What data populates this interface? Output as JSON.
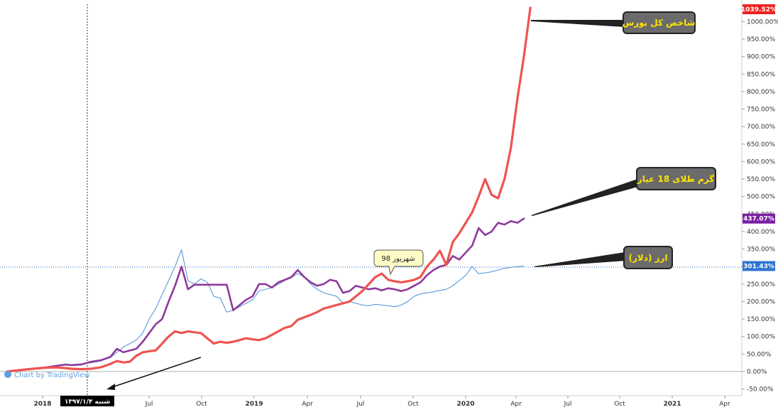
{
  "chart_data": {
    "type": "line",
    "x_ticks": [
      "2018",
      "Jul",
      "Oct",
      "2019",
      "Apr",
      "Jul",
      "Oct",
      "2020",
      "Apr",
      "Jul",
      "Oct",
      "2021",
      "Apr"
    ],
    "y_ticks": [
      "1000.00%",
      "950.00%",
      "900.00%",
      "850.00%",
      "800.00%",
      "750.00%",
      "700.00%",
      "650.00%",
      "600.00%",
      "550.00%",
      "500.00%",
      "450.00%",
      "400.00%",
      "350.00%",
      "300.00%",
      "250.00%",
      "200.00%",
      "150.00%",
      "100.00%",
      "50.00%",
      "0.00%",
      "-50.00%"
    ],
    "ylim": [
      -50,
      1039.52
    ],
    "series": [
      {
        "name": "شاخص کل بورس",
        "color": "#ef5350",
        "last_label": "1039.52%",
        "points": [
          [
            0,
            0
          ],
          [
            0.3,
            3
          ],
          [
            0.6,
            6
          ],
          [
            0.9,
            9
          ],
          [
            1.2,
            11
          ],
          [
            1.5,
            12
          ],
          [
            1.8,
            10
          ],
          [
            2.0,
            8
          ],
          [
            2.3,
            7
          ],
          [
            2.6,
            8
          ],
          [
            2.9,
            12
          ],
          [
            3.2,
            22
          ],
          [
            3.4,
            30
          ],
          [
            3.6,
            26
          ],
          [
            3.8,
            28
          ],
          [
            4.0,
            45
          ],
          [
            4.2,
            55
          ],
          [
            4.4,
            58
          ],
          [
            4.6,
            60
          ],
          [
            4.8,
            80
          ],
          [
            5.0,
            100
          ],
          [
            5.2,
            115
          ],
          [
            5.4,
            110
          ],
          [
            5.6,
            115
          ],
          [
            5.8,
            112
          ],
          [
            6.0,
            110
          ],
          [
            6.2,
            95
          ],
          [
            6.4,
            80
          ],
          [
            6.6,
            85
          ],
          [
            6.8,
            82
          ],
          [
            7.0,
            85
          ],
          [
            7.2,
            90
          ],
          [
            7.4,
            95
          ],
          [
            7.6,
            92
          ],
          [
            7.8,
            90
          ],
          [
            8.0,
            95
          ],
          [
            8.2,
            105
          ],
          [
            8.4,
            115
          ],
          [
            8.6,
            125
          ],
          [
            8.8,
            130
          ],
          [
            9.0,
            148
          ],
          [
            9.2,
            155
          ],
          [
            9.4,
            162
          ],
          [
            9.6,
            170
          ],
          [
            9.8,
            180
          ],
          [
            10.0,
            185
          ],
          [
            10.2,
            190
          ],
          [
            10.4,
            195
          ],
          [
            10.6,
            200
          ],
          [
            10.8,
            215
          ],
          [
            11.0,
            230
          ],
          [
            11.2,
            250
          ],
          [
            11.4,
            270
          ],
          [
            11.6,
            280
          ],
          [
            11.8,
            262
          ],
          [
            12.0,
            258
          ],
          [
            12.2,
            255
          ],
          [
            12.4,
            258
          ],
          [
            12.6,
            262
          ],
          [
            12.8,
            270
          ],
          [
            13.0,
            300
          ],
          [
            13.2,
            320
          ],
          [
            13.4,
            345
          ],
          [
            13.6,
            305
          ],
          [
            13.8,
            370
          ],
          [
            14.0,
            395
          ],
          [
            14.2,
            425
          ],
          [
            14.4,
            455
          ],
          [
            14.6,
            500
          ],
          [
            14.8,
            550
          ],
          [
            15.0,
            505
          ],
          [
            15.2,
            495
          ],
          [
            15.4,
            550
          ],
          [
            15.6,
            640
          ],
          [
            15.8,
            780
          ],
          [
            16.0,
            900
          ],
          [
            16.2,
            1039.52
          ]
        ]
      },
      {
        "name": "گرم طلای 18 عیار",
        "color": "#8e3a9c",
        "last_label": "437.07%",
        "points": [
          [
            0,
            0
          ],
          [
            0.3,
            2
          ],
          [
            0.6,
            6
          ],
          [
            0.9,
            9
          ],
          [
            1.2,
            12
          ],
          [
            1.5,
            16
          ],
          [
            1.8,
            20
          ],
          [
            2.0,
            18
          ],
          [
            2.3,
            20
          ],
          [
            2.6,
            28
          ],
          [
            2.9,
            32
          ],
          [
            3.2,
            42
          ],
          [
            3.4,
            65
          ],
          [
            3.6,
            55
          ],
          [
            3.8,
            60
          ],
          [
            4.0,
            65
          ],
          [
            4.2,
            85
          ],
          [
            4.4,
            110
          ],
          [
            4.6,
            135
          ],
          [
            4.8,
            150
          ],
          [
            5.0,
            200
          ],
          [
            5.2,
            245
          ],
          [
            5.4,
            300
          ],
          [
            5.6,
            235
          ],
          [
            5.8,
            248
          ],
          [
            6.0,
            248
          ],
          [
            6.2,
            248
          ],
          [
            6.4,
            248
          ],
          [
            6.6,
            248
          ],
          [
            6.8,
            248
          ],
          [
            7.0,
            175
          ],
          [
            7.2,
            190
          ],
          [
            7.4,
            205
          ],
          [
            7.6,
            215
          ],
          [
            7.8,
            250
          ],
          [
            8.0,
            250
          ],
          [
            8.2,
            240
          ],
          [
            8.4,
            255
          ],
          [
            8.6,
            262
          ],
          [
            8.8,
            270
          ],
          [
            9.0,
            290
          ],
          [
            9.2,
            270
          ],
          [
            9.4,
            255
          ],
          [
            9.6,
            245
          ],
          [
            9.8,
            250
          ],
          [
            10.0,
            262
          ],
          [
            10.2,
            258
          ],
          [
            10.4,
            225
          ],
          [
            10.6,
            230
          ],
          [
            10.8,
            245
          ],
          [
            11.0,
            240
          ],
          [
            11.2,
            235
          ],
          [
            11.4,
            238
          ],
          [
            11.6,
            232
          ],
          [
            11.8,
            238
          ],
          [
            12.0,
            235
          ],
          [
            12.2,
            230
          ],
          [
            12.4,
            235
          ],
          [
            12.6,
            245
          ],
          [
            12.8,
            255
          ],
          [
            13.0,
            275
          ],
          [
            13.2,
            290
          ],
          [
            13.4,
            300
          ],
          [
            13.6,
            305
          ],
          [
            13.8,
            330
          ],
          [
            14.0,
            320
          ],
          [
            14.2,
            340
          ],
          [
            14.4,
            360
          ],
          [
            14.6,
            410
          ],
          [
            14.8,
            390
          ],
          [
            15.0,
            400
          ],
          [
            15.2,
            425
          ],
          [
            15.4,
            420
          ],
          [
            15.6,
            430
          ],
          [
            15.8,
            425
          ],
          [
            16.0,
            437.07
          ]
        ]
      },
      {
        "name": "ارز (دلار)",
        "color": "#4a8fd6",
        "last_label": "301.43%",
        "points": [
          [
            0,
            0
          ],
          [
            0.3,
            3
          ],
          [
            0.6,
            5
          ],
          [
            0.9,
            8
          ],
          [
            1.2,
            12
          ],
          [
            1.5,
            15
          ],
          [
            1.8,
            18
          ],
          [
            2.0,
            20
          ],
          [
            2.3,
            22
          ],
          [
            2.6,
            25
          ],
          [
            2.9,
            30
          ],
          [
            3.2,
            40
          ],
          [
            3.4,
            55
          ],
          [
            3.6,
            70
          ],
          [
            3.8,
            80
          ],
          [
            4.0,
            90
          ],
          [
            4.2,
            110
          ],
          [
            4.4,
            150
          ],
          [
            4.6,
            180
          ],
          [
            4.8,
            220
          ],
          [
            5.0,
            260
          ],
          [
            5.2,
            300
          ],
          [
            5.4,
            348
          ],
          [
            5.6,
            260
          ],
          [
            5.8,
            250
          ],
          [
            6.0,
            265
          ],
          [
            6.2,
            255
          ],
          [
            6.4,
            215
          ],
          [
            6.6,
            210
          ],
          [
            6.8,
            170
          ],
          [
            7.0,
            175
          ],
          [
            7.2,
            185
          ],
          [
            7.4,
            195
          ],
          [
            7.6,
            205
          ],
          [
            7.8,
            230
          ],
          [
            8.0,
            235
          ],
          [
            8.2,
            240
          ],
          [
            8.4,
            250
          ],
          [
            8.6,
            260
          ],
          [
            8.8,
            268
          ],
          [
            9.0,
            280
          ],
          [
            9.2,
            270
          ],
          [
            9.4,
            250
          ],
          [
            9.6,
            235
          ],
          [
            9.8,
            225
          ],
          [
            10.0,
            220
          ],
          [
            10.2,
            215
          ],
          [
            10.4,
            195
          ],
          [
            10.6,
            200
          ],
          [
            10.8,
            195
          ],
          [
            11.0,
            190
          ],
          [
            11.2,
            188
          ],
          [
            11.4,
            192
          ],
          [
            11.6,
            190
          ],
          [
            11.8,
            188
          ],
          [
            12.0,
            185
          ],
          [
            12.2,
            190
          ],
          [
            12.4,
            200
          ],
          [
            12.6,
            215
          ],
          [
            12.8,
            222
          ],
          [
            13.0,
            225
          ],
          [
            13.2,
            228
          ],
          [
            13.4,
            232
          ],
          [
            13.6,
            235
          ],
          [
            13.8,
            245
          ],
          [
            14.0,
            260
          ],
          [
            14.2,
            275
          ],
          [
            14.4,
            300
          ],
          [
            14.6,
            280
          ],
          [
            14.8,
            282
          ],
          [
            15.0,
            285
          ],
          [
            15.2,
            290
          ],
          [
            15.4,
            295
          ],
          [
            15.6,
            298
          ],
          [
            15.8,
            300
          ],
          [
            16.0,
            301.43
          ]
        ]
      }
    ],
    "annotations": [
      {
        "text": "شاخص کل بورس"
      },
      {
        "text": "گرم طلای 18 عیار"
      },
      {
        "text": "ارز (دلار)"
      },
      {
        "text": "شهریور 98"
      }
    ],
    "crosshair_date_label": "شنبه ۱۳۹۷/۱/۴",
    "watermark": "Chart by TradingView"
  }
}
